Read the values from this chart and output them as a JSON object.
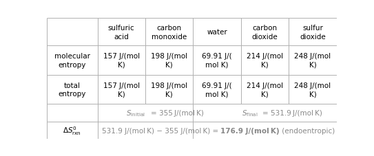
{
  "col_headers": [
    "",
    "sulfuric\nacid",
    "carbon\nmonoxide",
    "water",
    "carbon\ndioxide",
    "sulfur\ndioxide"
  ],
  "row1_label": "molecular\nentropy",
  "row2_label": "total\nentropy",
  "row1_values": [
    "157 J/(mol\nK)",
    "198 J/(mol\nK)",
    "69.91 J/(\nmol K)",
    "214 J/(mol\nK)",
    "248 J/(mol\nK)"
  ],
  "row2_values": [
    "157 J/(mol\nK)",
    "198 J/(mol\nK)",
    "69.91 J/(\nmol K)",
    "214 J/(mol\nK)",
    "248 J/(mol\nK)"
  ],
  "s_initial_text_plain": " = 355 J/(mol K)",
  "s_final_text_plain": " = 531.9 J/(mol K)",
  "delta_s_plain": "531.9 J/(mol K) − 355 J/(mol K) = ",
  "delta_s_bold": "176.9 J/(mol K)",
  "delta_s_end": " (endoentropic)",
  "bg_color": "#ffffff",
  "grid_color": "#b0b0b0",
  "text_color": "#000000",
  "gray_color": "#888888",
  "fs": 7.5
}
